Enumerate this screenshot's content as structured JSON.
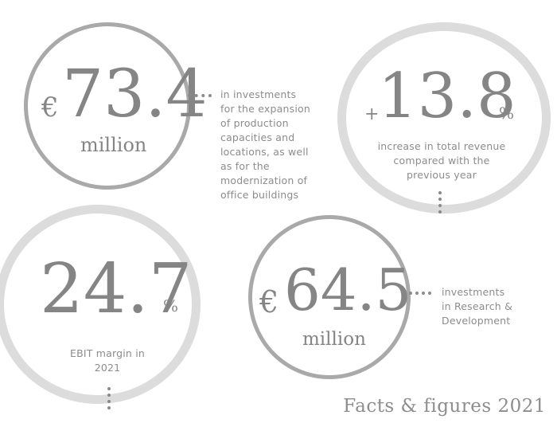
{
  "facts": [
    {
      "prefix": "€",
      "value": "73.4",
      "unit": "million",
      "description": [
        "in investments",
        "for the expansion",
        "of production",
        "capacities and",
        "locations, as well",
        "as for the",
        "modernization of",
        "office buildings"
      ]
    },
    {
      "prefix": "+",
      "value": "13.8",
      "suffix": "%",
      "description": [
        "increase in total revenue",
        "compared with the",
        "previous year"
      ]
    },
    {
      "value": "24.7",
      "suffix": "%",
      "description": [
        "EBIT margin in",
        "2021"
      ]
    },
    {
      "prefix": "€",
      "value": "64.5",
      "unit": "million",
      "description": [
        "investments",
        "in Research &",
        "Development"
      ]
    }
  ],
  "footer": "Facts & figures 2021"
}
